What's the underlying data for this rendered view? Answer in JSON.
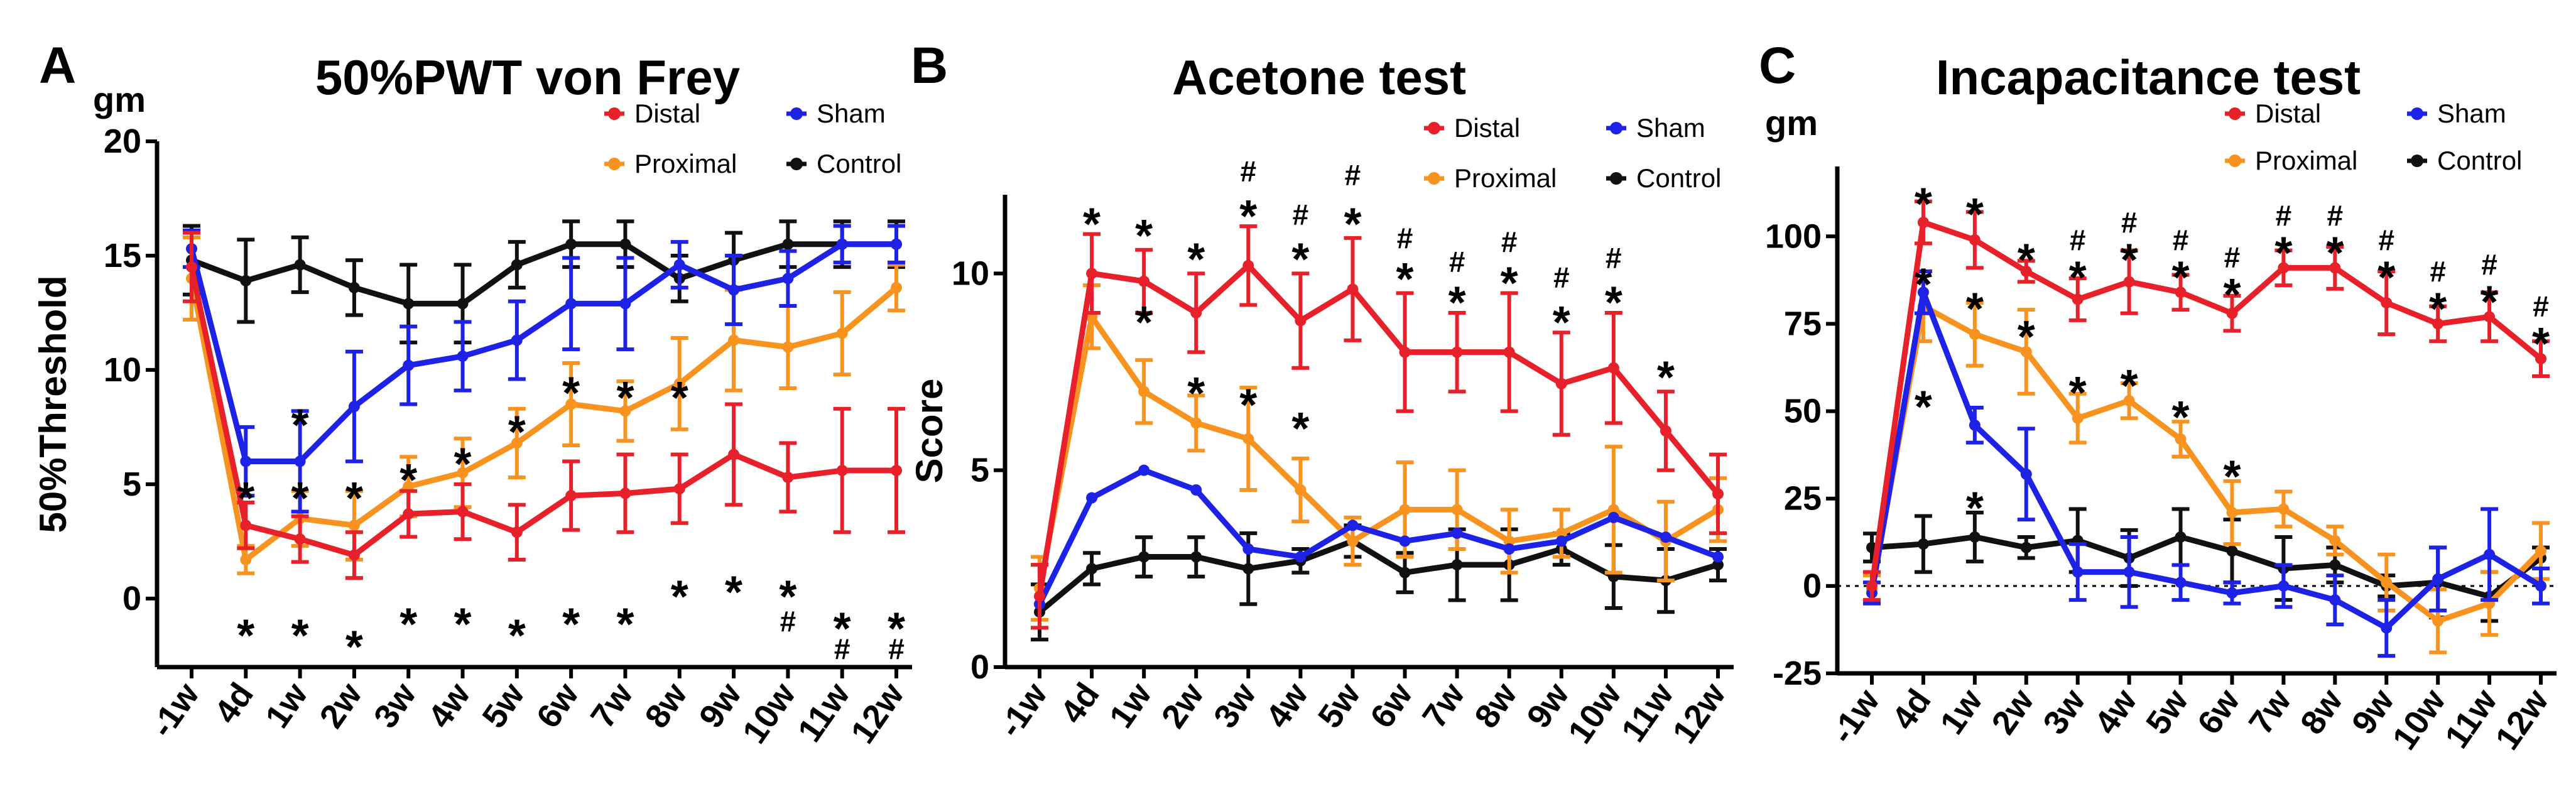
{
  "chart_data": [
    {
      "type": "line",
      "panel_letter": "A",
      "unit_label": "gm",
      "title": "50%PWT von Frey",
      "ylabel": "50%Threshold",
      "xlabel": "",
      "categories": [
        "-1w",
        "4d",
        "1w",
        "2w",
        "3w",
        "4w",
        "5w",
        "6w",
        "7w",
        "8w",
        "9w",
        "10w",
        "11w",
        "12w"
      ],
      "ylim": [
        -3,
        20
      ],
      "yticks": [
        0,
        5,
        10,
        15,
        20
      ],
      "legend_position": "top-right",
      "series": [
        {
          "name": "Distal",
          "color": "#e8202a",
          "values": [
            14.5,
            3.2,
            2.6,
            1.9,
            3.7,
            3.8,
            2.9,
            4.5,
            4.6,
            4.8,
            6.3,
            5.3,
            5.6,
            5.6
          ],
          "errors": [
            1.5,
            1.0,
            1.0,
            1.0,
            1.0,
            1.2,
            1.2,
            1.5,
            1.7,
            1.5,
            2.2,
            1.5,
            2.7,
            2.7
          ]
        },
        {
          "name": "Sham",
          "color": "#1e22e6",
          "values": [
            15.3,
            6.0,
            6.0,
            8.4,
            10.2,
            10.6,
            11.3,
            12.9,
            12.9,
            14.6,
            13.5,
            14.0,
            15.5,
            15.5
          ],
          "errors": [
            0.8,
            1.5,
            2.2,
            2.4,
            1.7,
            1.5,
            1.7,
            2.0,
            2.0,
            1.0,
            1.5,
            1.2,
            0.8,
            0.8
          ]
        },
        {
          "name": "Proximal",
          "color": "#f7931e",
          "values": [
            14.0,
            1.7,
            3.5,
            3.2,
            4.9,
            5.5,
            6.8,
            8.5,
            8.2,
            9.4,
            11.3,
            11.0,
            11.6,
            13.6
          ],
          "errors": [
            1.8,
            0.6,
            1.2,
            1.5,
            1.3,
            1.5,
            1.5,
            1.8,
            1.3,
            2.0,
            2.2,
            1.8,
            1.8,
            1.0
          ]
        },
        {
          "name": "Control",
          "color": "#111111",
          "values": [
            14.8,
            13.9,
            14.6,
            13.6,
            12.9,
            12.9,
            14.6,
            15.5,
            15.5,
            14.0,
            14.8,
            15.5,
            15.5,
            15.5
          ],
          "errors": [
            1.5,
            1.8,
            1.2,
            1.2,
            1.7,
            1.7,
            1.0,
            1.0,
            1.0,
            1.0,
            1.2,
            1.0,
            1.0,
            1.0
          ]
        }
      ],
      "annotations": [
        {
          "x": "4d",
          "text": "*",
          "value": 4.8
        },
        {
          "x": "1w",
          "text": "*",
          "value": 4.8
        },
        {
          "x": "1w",
          "text": "*",
          "value": 8.0
        },
        {
          "x": "2w",
          "text": "*",
          "value": 4.8
        },
        {
          "x": "3w",
          "text": "*",
          "value": 5.6
        },
        {
          "x": "4w",
          "text": "*",
          "value": 6.3
        },
        {
          "x": "5w",
          "text": "*",
          "value": 7.7
        },
        {
          "x": "6w",
          "text": "*",
          "value": 9.4
        },
        {
          "x": "7w",
          "text": "*",
          "value": 9.2
        },
        {
          "x": "8w",
          "text": "*",
          "value": 9.2
        },
        {
          "x": "4d",
          "text": "*",
          "value": -1.2
        },
        {
          "x": "1w",
          "text": "*",
          "value": -1.2
        },
        {
          "x": "2w",
          "text": "*",
          "value": -1.7
        },
        {
          "x": "3w",
          "text": "*",
          "value": -0.7
        },
        {
          "x": "4w",
          "text": "*",
          "value": -0.7
        },
        {
          "x": "5w",
          "text": "*",
          "value": -1.2
        },
        {
          "x": "6w",
          "text": "*",
          "value": -0.7
        },
        {
          "x": "7w",
          "text": "*",
          "value": -0.7
        },
        {
          "x": "8w",
          "text": "*",
          "value": 0.5
        },
        {
          "x": "9w",
          "text": "*",
          "value": 0.7
        },
        {
          "x": "10w",
          "text": "*",
          "value": 0.5
        },
        {
          "x": "10w",
          "text": "#",
          "value": -1.0
        },
        {
          "x": "11w",
          "text": "*",
          "value": -0.9
        },
        {
          "x": "11w",
          "text": "#",
          "value": -2.2
        },
        {
          "x": "12w",
          "text": "*",
          "value": -0.9
        },
        {
          "x": "12w",
          "text": "#",
          "value": -2.2
        }
      ]
    },
    {
      "type": "line",
      "panel_letter": "B",
      "unit_label": "",
      "title": "Acetone test",
      "ylabel": "Score",
      "xlabel": "",
      "categories": [
        "-1w",
        "4d",
        "1w",
        "2w",
        "3w",
        "4w",
        "5w",
        "6w",
        "7w",
        "8w",
        "9w",
        "10w",
        "11w",
        "12w"
      ],
      "ylim": [
        0,
        12
      ],
      "yticks": [
        0,
        5,
        10
      ],
      "legend_position": "top-right",
      "series": [
        {
          "name": "Distal",
          "color": "#e8202a",
          "values": [
            1.8,
            10.0,
            9.8,
            9.0,
            10.2,
            8.8,
            9.6,
            8.0,
            8.0,
            8.0,
            7.2,
            7.6,
            6.0,
            4.4
          ],
          "errors": [
            0.8,
            1.0,
            0.8,
            1.0,
            1.0,
            1.2,
            1.3,
            1.5,
            1.0,
            1.5,
            1.3,
            1.4,
            1.0,
            1.0
          ]
        },
        {
          "name": "Sham",
          "color": "#1e22e6",
          "values": [
            1.6,
            4.3,
            5.0,
            4.5,
            3.0,
            2.8,
            3.6,
            3.2,
            3.4,
            3.0,
            3.2,
            3.8,
            3.3,
            2.8
          ]
        },
        {
          "name": "Proximal",
          "color": "#f7931e",
          "values": [
            2.0,
            8.9,
            7.0,
            6.2,
            5.8,
            4.5,
            3.2,
            4.0,
            4.0,
            3.2,
            3.4,
            4.0,
            3.2,
            4.0
          ],
          "errors": [
            0.8,
            0.8,
            0.8,
            0.7,
            1.3,
            0.8,
            0.6,
            1.2,
            1.0,
            0.8,
            0.6,
            1.6,
            1.0,
            0.8
          ]
        },
        {
          "name": "Control",
          "color": "#111111",
          "values": [
            1.4,
            2.5,
            2.8,
            2.8,
            2.5,
            2.7,
            3.2,
            2.4,
            2.6,
            2.6,
            3.0,
            2.3,
            2.2,
            2.6
          ],
          "errors": [
            0.7,
            0.4,
            0.5,
            0.5,
            0.9,
            0.3,
            0.4,
            0.5,
            0.9,
            0.9,
            0.4,
            0.8,
            0.8,
            0.4
          ]
        }
      ],
      "annotations": [
        {
          "x": "4d",
          "text": "*",
          "value": 11.5
        },
        {
          "x": "1w",
          "text": "*",
          "value": 11.2
        },
        {
          "x": "2w",
          "text": "*",
          "value": 10.6
        },
        {
          "x": "3w",
          "text": "*",
          "value": 11.7
        },
        {
          "x": "3w",
          "text": "#",
          "value": 12.6
        },
        {
          "x": "4w",
          "text": "*",
          "value": 10.6
        },
        {
          "x": "4w",
          "text": "#",
          "value": 11.5
        },
        {
          "x": "5w",
          "text": "*",
          "value": 11.5
        },
        {
          "x": "5w",
          "text": "#",
          "value": 12.5
        },
        {
          "x": "6w",
          "text": "*",
          "value": 10.1
        },
        {
          "x": "6w",
          "text": "#",
          "value": 10.9
        },
        {
          "x": "7w",
          "text": "*",
          "value": 9.5
        },
        {
          "x": "7w",
          "text": "#",
          "value": 10.3
        },
        {
          "x": "8w",
          "text": "*",
          "value": 10.0
        },
        {
          "x": "8w",
          "text": "#",
          "value": 10.8
        },
        {
          "x": "9w",
          "text": "*",
          "value": 9.0
        },
        {
          "x": "9w",
          "text": "#",
          "value": 9.9
        },
        {
          "x": "10w",
          "text": "*",
          "value": 9.5
        },
        {
          "x": "10w",
          "text": "#",
          "value": 10.4
        },
        {
          "x": "11w",
          "text": "*",
          "value": 7.6
        },
        {
          "x": "1w",
          "text": "*",
          "value": 9.0
        },
        {
          "x": "2w",
          "text": "*",
          "value": 7.2
        },
        {
          "x": "3w",
          "text": "*",
          "value": 6.9
        },
        {
          "x": "4w",
          "text": "*",
          "value": 6.3
        }
      ]
    },
    {
      "type": "line",
      "panel_letter": "C",
      "unit_label": "gm",
      "title": "Incapacitance test",
      "ylabel": "",
      "xlabel": "",
      "categories": [
        "-1w",
        "4d",
        "1w",
        "2w",
        "3w",
        "4w",
        "5w",
        "6w",
        "7w",
        "8w",
        "9w",
        "10w",
        "11w",
        "12w"
      ],
      "ylim": [
        -25,
        120
      ],
      "yticks": [
        -25,
        0,
        25,
        50,
        75,
        100
      ],
      "reference_line": 0,
      "legend_position": "top-right",
      "series": [
        {
          "name": "Distal",
          "color": "#e8202a",
          "values": [
            0,
            104,
            99,
            90,
            82,
            87,
            84,
            78,
            91,
            91,
            81,
            75,
            77,
            65
          ],
          "errors": [
            4,
            6,
            8,
            3,
            6,
            9,
            5,
            5,
            5,
            6,
            9,
            5,
            7,
            5
          ]
        },
        {
          "name": "Sham",
          "color": "#1e22e6",
          "values": [
            -2,
            84,
            46,
            32,
            4,
            4,
            1,
            -2,
            0,
            -4,
            -12,
            2,
            9,
            0
          ],
          "errors": [
            3,
            6,
            5,
            13,
            8,
            10,
            5,
            3,
            6,
            7,
            8,
            9,
            13,
            5
          ]
        },
        {
          "name": "Proximal",
          "color": "#f7931e",
          "values": [
            -1,
            80,
            72,
            67,
            48,
            53,
            42,
            21,
            22,
            13,
            1,
            -10,
            -5,
            10
          ],
          "errors": [
            4,
            10,
            9,
            12,
            7,
            5,
            5,
            9,
            5,
            4,
            8,
            9,
            9,
            8
          ]
        },
        {
          "name": "Control",
          "color": "#111111",
          "values": [
            11,
            12,
            14,
            11,
            13,
            8,
            14,
            10,
            5,
            6,
            0,
            1,
            -3,
            8
          ],
          "errors": [
            4,
            8,
            7,
            3,
            9,
            8,
            8,
            9,
            9,
            5,
            3,
            10,
            7,
            3
          ]
        }
      ],
      "annotations": [
        {
          "x": "4d",
          "text": "*",
          "value": 112
        },
        {
          "x": "1w",
          "text": "*",
          "value": 109
        },
        {
          "x": "2w",
          "text": "*",
          "value": 96
        },
        {
          "x": "3w",
          "text": "*",
          "value": 91
        },
        {
          "x": "3w",
          "text": "#",
          "value": 99
        },
        {
          "x": "4w",
          "text": "*",
          "value": 96
        },
        {
          "x": "4w",
          "text": "#",
          "value": 104
        },
        {
          "x": "5w",
          "text": "*",
          "value": 91
        },
        {
          "x": "5w",
          "text": "#",
          "value": 99
        },
        {
          "x": "6w",
          "text": "*",
          "value": 86
        },
        {
          "x": "6w",
          "text": "#",
          "value": 94
        },
        {
          "x": "7w",
          "text": "*",
          "value": 98
        },
        {
          "x": "7w",
          "text": "#",
          "value": 106
        },
        {
          "x": "8w",
          "text": "*",
          "value": 98
        },
        {
          "x": "8w",
          "text": "#",
          "value": 106
        },
        {
          "x": "9w",
          "text": "*",
          "value": 91
        },
        {
          "x": "9w",
          "text": "#",
          "value": 99
        },
        {
          "x": "10w",
          "text": "*",
          "value": 82
        },
        {
          "x": "10w",
          "text": "#",
          "value": 90
        },
        {
          "x": "11w",
          "text": "*",
          "value": 84
        },
        {
          "x": "11w",
          "text": "#",
          "value": 92
        },
        {
          "x": "12w",
          "text": "*",
          "value": 72
        },
        {
          "x": "12w",
          "text": "#",
          "value": 80
        },
        {
          "x": "4d",
          "text": "*",
          "value": 54
        },
        {
          "x": "1w",
          "text": "*",
          "value": 25
        },
        {
          "x": "4d",
          "text": "*",
          "value": 89
        },
        {
          "x": "1w",
          "text": "*",
          "value": 82
        },
        {
          "x": "2w",
          "text": "*",
          "value": 74
        },
        {
          "x": "3w",
          "text": "*",
          "value": 58
        },
        {
          "x": "4w",
          "text": "*",
          "value": 60
        },
        {
          "x": "5w",
          "text": "*",
          "value": 51
        },
        {
          "x": "6w",
          "text": "*",
          "value": 34
        }
      ]
    }
  ]
}
